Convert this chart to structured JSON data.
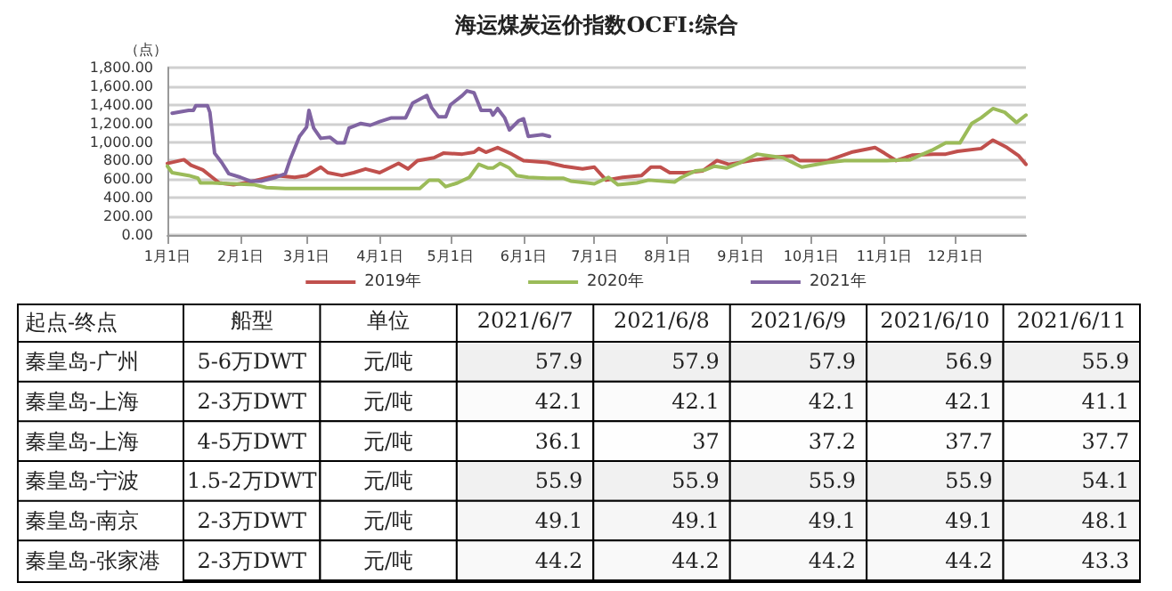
{
  "chart_data": [
    {
      "type": "line",
      "title": "海运煤炭运价指数OCFI:综合",
      "ylabel": "（点）",
      "xlim": [
        "--01-01",
        "--12-31"
      ],
      "xticks": [
        {
          "value": "--01-01",
          "label": "1月1日"
        },
        {
          "value": "--02-01",
          "label": "2月1日"
        },
        {
          "value": "--03-01",
          "label": "3月1日"
        },
        {
          "value": "--04-01",
          "label": "4月1日"
        },
        {
          "value": "--05-01",
          "label": "5月1日"
        },
        {
          "value": "--06-01",
          "label": "6月1日"
        },
        {
          "value": "--07-01",
          "label": "7月1日"
        },
        {
          "value": "--08-01",
          "label": "8月1日"
        },
        {
          "value": "--09-01",
          "label": "9月1日"
        },
        {
          "value": "--10-01",
          "label": "10月1日"
        },
        {
          "value": "--11-01",
          "label": "11月1日"
        },
        {
          "value": "--12-01",
          "label": "12月1日"
        }
      ],
      "ylim": [
        0,
        1800
      ],
      "yticks": [
        {
          "value": 0,
          "label": "0.00"
        },
        {
          "value": 200,
          "label": "200.00"
        },
        {
          "value": 400,
          "label": "400.00"
        },
        {
          "value": 600,
          "label": "600.00"
        },
        {
          "value": 800,
          "label": "800.00"
        },
        {
          "value": 1000,
          "label": "1,000.00"
        },
        {
          "value": 1200,
          "label": "1,200.00"
        },
        {
          "value": 1400,
          "label": "1,400.00"
        },
        {
          "value": 1600,
          "label": "1,600.00"
        },
        {
          "value": 1800,
          "label": "1,800.00"
        }
      ],
      "grid": "y",
      "legend": "bottom",
      "marker": "none",
      "line_style": "solid",
      "series": [
        {
          "name": "2019年",
          "color": "#c0504d",
          "x": [
            "--01-01",
            "--01-08",
            "--01-11",
            "--01-16",
            "--01-20",
            "--01-23",
            "--01-29",
            "--02-05",
            "--02-16",
            "--02-24",
            "--03-01",
            "--03-07",
            "--03-10",
            "--03-16",
            "--03-21",
            "--03-26",
            "--04-01",
            "--04-05",
            "--04-09",
            "--04-13",
            "--04-17",
            "--04-24",
            "--04-28",
            "--05-06",
            "--05-11",
            "--05-13",
            "--05-16",
            "--05-21",
            "--05-27",
            "--06-01",
            "--06-11",
            "--06-18",
            "--06-26",
            "--07-01",
            "--07-06",
            "--07-13",
            "--07-21",
            "--07-25",
            "--07-29",
            "--08-02",
            "--08-09",
            "--08-16",
            "--08-22",
            "--08-27",
            "--09-08",
            "--09-17",
            "--09-23",
            "--09-26",
            "--10-08",
            "--10-18",
            "--10-28",
            "--11-01",
            "--11-06",
            "--11-13",
            "--11-22",
            "--11-27",
            "--12-02",
            "--12-12",
            "--12-17",
            "--12-23",
            "--12-28",
            "--12-31"
          ],
          "values": [
            770,
            810,
            750,
            700,
            620,
            560,
            540,
            570,
            640,
            620,
            640,
            730,
            670,
            640,
            670,
            710,
            670,
            720,
            770,
            710,
            800,
            830,
            880,
            870,
            890,
            930,
            890,
            940,
            870,
            800,
            780,
            740,
            710,
            730,
            590,
            620,
            640,
            730,
            730,
            670,
            670,
            690,
            800,
            760,
            810,
            840,
            850,
            800,
            800,
            890,
            940,
            880,
            800,
            860,
            870,
            870,
            900,
            930,
            1020,
            940,
            850,
            760
          ]
        },
        {
          "name": "2020年",
          "color": "#9bbb59",
          "x": [
            "--01-01",
            "--01-03",
            "--01-10",
            "--01-14",
            "--01-15",
            "--01-20",
            "--01-29",
            "--02-07",
            "--02-12",
            "--02-20",
            "--03-01",
            "--04-01",
            "--04-18",
            "--04-22",
            "--04-26",
            "--04-29",
            "--05-04",
            "--05-09",
            "--05-13",
            "--05-17",
            "--05-19",
            "--05-22",
            "--05-26",
            "--05-29",
            "--06-03",
            "--06-11",
            "--06-18",
            "--06-21",
            "--06-28",
            "--07-01",
            "--07-07",
            "--07-11",
            "--07-19",
            "--07-24",
            "--08-04",
            "--08-07",
            "--08-13",
            "--08-17",
            "--08-21",
            "--08-26",
            "--09-01",
            "--09-08",
            "--09-19",
            "--09-27",
            "--10-08",
            "--10-15",
            "--10-25",
            "--11-02",
            "--11-12",
            "--11-21",
            "--11-27",
            "--12-03",
            "--12-08",
            "--12-12",
            "--12-17",
            "--12-22",
            "--12-27",
            "--12-31"
          ],
          "values": [
            740,
            670,
            640,
            610,
            560,
            560,
            550,
            540,
            510,
            500,
            500,
            500,
            500,
            590,
            590,
            520,
            560,
            620,
            760,
            720,
            720,
            770,
            720,
            640,
            620,
            610,
            610,
            580,
            560,
            550,
            620,
            540,
            560,
            590,
            570,
            620,
            690,
            700,
            740,
            720,
            780,
            870,
            830,
            730,
            780,
            800,
            800,
            800,
            810,
            910,
            990,
            990,
            1200,
            1260,
            1360,
            1320,
            1210,
            1290
          ]
        },
        {
          "name": "2021年",
          "color": "#8064a2",
          "x": [
            "--01-03",
            "--01-10",
            "--01-12",
            "--01-13",
            "--01-18",
            "--01-19",
            "--01-21",
            "--01-24",
            "--01-27",
            "--02-01",
            "--02-05",
            "--02-10",
            "--02-16",
            "--02-20",
            "--02-22",
            "--02-26",
            "--03-01",
            "--03-02",
            "--03-04",
            "--03-07",
            "--03-11",
            "--03-14",
            "--03-17",
            "--03-19",
            "--03-24",
            "--03-28",
            "--04-01",
            "--04-06",
            "--04-12",
            "--04-15",
            "--04-21",
            "--04-23",
            "--04-26",
            "--04-29",
            "--05-01",
            "--05-06",
            "--05-08",
            "--05-11",
            "--05-14",
            "--05-18",
            "--05-19",
            "--05-21",
            "--05-24",
            "--05-26",
            "--05-30",
            "--06-01",
            "--06-03",
            "--06-09",
            "--06-12"
          ],
          "values": [
            1310,
            1340,
            1340,
            1390,
            1390,
            1320,
            880,
            780,
            660,
            620,
            580,
            580,
            620,
            660,
            810,
            1060,
            1160,
            1340,
            1150,
            1040,
            1050,
            990,
            990,
            1150,
            1200,
            1180,
            1220,
            1260,
            1260,
            1420,
            1500,
            1370,
            1270,
            1270,
            1400,
            1500,
            1550,
            1530,
            1340,
            1340,
            1290,
            1360,
            1260,
            1130,
            1230,
            1250,
            1060,
            1080,
            1060
          ]
        }
      ]
    },
    {
      "type": "heatmap",
      "ylabel": "起点-终点",
      "data_labels": true,
      "categories": [
        "船型",
        "单位",
        "2021/6/7",
        "2021/6/8",
        "2021/6/9",
        "2021/6/10",
        "2021/6/11"
      ],
      "y_categories": [
        "秦皇岛-广州",
        "秦皇岛-上海",
        "秦皇岛-上海",
        "秦皇岛-宁波",
        "秦皇岛-南京",
        "秦皇岛-张家港"
      ],
      "cells": [
        [
          null,
          null,
          57.9,
          57.9,
          57.9,
          56.9,
          55.9
        ],
        [
          null,
          null,
          42.1,
          42.1,
          42.1,
          42.1,
          41.1
        ],
        [
          null,
          null,
          36.1,
          37,
          37.2,
          37.7,
          37.7
        ],
        [
          null,
          null,
          55.9,
          55.9,
          55.9,
          55.9,
          54.1
        ],
        [
          null,
          null,
          49.1,
          49.1,
          49.1,
          49.1,
          48.1
        ],
        [
          null,
          null,
          44.2,
          44.2,
          44.2,
          44.2,
          43.3
        ]
      ],
      "cell_labels": [
        [
          "5-6万DWT",
          "元/吨",
          "57.9",
          "57.9",
          "57.9",
          "56.9",
          "55.9"
        ],
        [
          "2-3万DWT",
          "元/吨",
          "42.1",
          "42.1",
          "42.1",
          "42.1",
          "41.1"
        ],
        [
          "4-5万DWT",
          "元/吨",
          "36.1",
          "37",
          "37.2",
          "37.7",
          "37.7"
        ],
        [
          "1.5-2万DWT",
          "元/吨",
          "55.9",
          "55.9",
          "55.9",
          "55.9",
          "54.1"
        ],
        [
          "2-3万DWT",
          "元/吨",
          "49.1",
          "49.1",
          "49.1",
          "49.1",
          "48.1"
        ],
        [
          "2-3万DWT",
          "元/吨",
          "44.2",
          "44.2",
          "44.2",
          "44.2",
          "43.3"
        ]
      ]
    }
  ]
}
